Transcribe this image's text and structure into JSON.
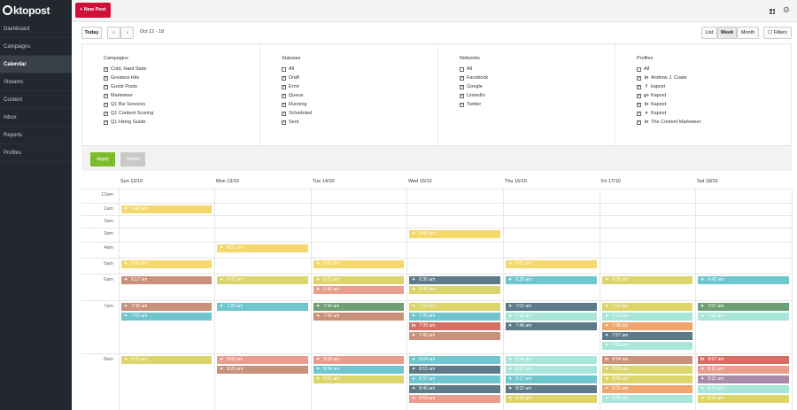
{
  "brand": {
    "logo_text": "ktopost"
  },
  "sidebar": {
    "items": [
      {
        "label": "Dashboard",
        "active": false
      },
      {
        "label": "Campaigns",
        "active": false
      },
      {
        "label": "Calendar",
        "active": true
      },
      {
        "label": "Streams",
        "active": false
      },
      {
        "label": "Content",
        "active": false
      },
      {
        "label": "Inbox",
        "active": false
      },
      {
        "label": "Reports",
        "active": false
      },
      {
        "label": "Profiles",
        "active": false
      }
    ]
  },
  "topbar": {
    "new_post_label": "+ New Post",
    "new_post_color": "#d0103a"
  },
  "toolbar": {
    "today_label": "Today",
    "prev_label": "‹",
    "next_label": "›",
    "date_range": "Oct 12 - 18",
    "list_label": "List",
    "week_label": "Week",
    "month_label": "Month",
    "filters_label": "☐ Filters"
  },
  "filters": {
    "campaigns": {
      "title": "Campaigns",
      "items": [
        {
          "label": "Cold, Hard Stats",
          "checked": true
        },
        {
          "label": "Greatest Hits",
          "checked": true
        },
        {
          "label": "Guest Posts",
          "checked": true
        },
        {
          "label": "Marketeer",
          "checked": true
        },
        {
          "label": "Q1 Biz Services",
          "checked": true
        },
        {
          "label": "Q1 Content Scoring",
          "checked": true
        },
        {
          "label": "Q1 Hiring Guide",
          "checked": true
        }
      ]
    },
    "statuses": {
      "title": "Statuses",
      "items": [
        {
          "label": "All",
          "checked": false
        },
        {
          "label": "Draft",
          "checked": true
        },
        {
          "label": "Error",
          "checked": true
        },
        {
          "label": "Queue",
          "checked": true
        },
        {
          "label": "Running",
          "checked": true
        },
        {
          "label": "Scheduled",
          "checked": true
        },
        {
          "label": "Sent",
          "checked": true
        }
      ]
    },
    "networks": {
      "title": "Networks",
      "items": [
        {
          "label": "All",
          "checked": false
        },
        {
          "label": "Facebook",
          "checked": true
        },
        {
          "label": "Google",
          "checked": true
        },
        {
          "label": "LinkedIn",
          "checked": true
        },
        {
          "label": "Twitter",
          "checked": true
        }
      ]
    },
    "profiles": {
      "title": "Profiles",
      "items": [
        {
          "label": "All",
          "checked": false,
          "icon": ""
        },
        {
          "label": "Andrew J. Coate",
          "checked": true,
          "icon": "in"
        },
        {
          "label": "kapost",
          "checked": true,
          "icon": "f"
        },
        {
          "label": "Kapost",
          "checked": true,
          "icon": "g+"
        },
        {
          "label": "Kapost",
          "checked": true,
          "icon": "in"
        },
        {
          "label": "Kapost",
          "checked": true,
          "icon": "t"
        },
        {
          "label": "The Content Marketeer",
          "checked": true,
          "icon": "in"
        }
      ]
    },
    "apply_label": "Apply",
    "reset_label": "Reset"
  },
  "calendar": {
    "days": [
      "Sun 12/10",
      "Mon 13/10",
      "Tue 14/10",
      "Wed 15/10",
      "Thu 16/10",
      "Fri 17/10",
      "Sat 18/10"
    ],
    "hours": [
      "12am",
      "1am",
      "2am",
      "3am",
      "4am",
      "5am",
      "6am",
      "7am",
      "8am"
    ],
    "colors": {
      "yellow": "#f5d86a",
      "olive": "#dbd56b",
      "salmon": "#e99d8c",
      "brown": "#c9917a",
      "teal": "#6fc6cf",
      "slate": "#5c7a87",
      "mint": "#a8e6d9",
      "green": "#6f9f76",
      "red": "#d56e63",
      "purple": "#a98aa8",
      "orange": "#efa56c"
    },
    "events": [
      {
        "day": 0,
        "hour": 1,
        "slot": 0,
        "time": "1:46 am",
        "icon": "t",
        "color": "yellow"
      },
      {
        "day": 3,
        "hour": 3,
        "slot": 0,
        "time": "3:44 am",
        "icon": "t",
        "color": "yellow"
      },
      {
        "day": 1,
        "hour": 4,
        "slot": 0,
        "time": "4:51 am",
        "icon": "t",
        "color": "yellow"
      },
      {
        "day": 0,
        "hour": 5,
        "slot": 0,
        "time": "5:56 am",
        "icon": "t",
        "color": "yellow"
      },
      {
        "day": 2,
        "hour": 5,
        "slot": 0,
        "time": "5:56 am",
        "icon": "t",
        "color": "yellow"
      },
      {
        "day": 4,
        "hour": 5,
        "slot": 0,
        "time": "5:55 am",
        "icon": "t",
        "color": "yellow"
      },
      {
        "day": 0,
        "hour": 6,
        "slot": 0,
        "time": "6:17 am",
        "icon": "t",
        "color": "brown"
      },
      {
        "day": 1,
        "hour": 6,
        "slot": 0,
        "time": "6:07 am",
        "icon": "t",
        "color": "olive"
      },
      {
        "day": 2,
        "hour": 6,
        "slot": 0,
        "time": "6:23 am",
        "icon": "t",
        "color": "olive"
      },
      {
        "day": 2,
        "hour": 6,
        "slot": 1,
        "time": "6:40 am",
        "icon": "t",
        "color": "salmon"
      },
      {
        "day": 3,
        "hour": 6,
        "slot": 0,
        "time": "6:30 am",
        "icon": "t",
        "color": "slate"
      },
      {
        "day": 3,
        "hour": 6,
        "slot": 1,
        "time": "6:45 am",
        "icon": "t",
        "color": "olive"
      },
      {
        "day": 4,
        "hour": 6,
        "slot": 0,
        "time": "6:20 am",
        "icon": "t",
        "color": "teal"
      },
      {
        "day": 5,
        "hour": 6,
        "slot": 0,
        "time": "6:35 am",
        "icon": "t",
        "color": "olive"
      },
      {
        "day": 6,
        "hour": 6,
        "slot": 0,
        "time": "6:42 am",
        "icon": "t",
        "color": "teal"
      },
      {
        "day": 0,
        "hour": 7,
        "slot": 0,
        "time": "7:38 am",
        "icon": "t",
        "color": "brown"
      },
      {
        "day": 0,
        "hour": 7,
        "slot": 1,
        "time": "7:51 am",
        "icon": "t",
        "color": "teal"
      },
      {
        "day": 1,
        "hour": 7,
        "slot": 0,
        "time": "7:29 am",
        "icon": "t",
        "color": "teal"
      },
      {
        "day": 2,
        "hour": 7,
        "slot": 0,
        "time": "7:34 am",
        "icon": "t",
        "color": "green"
      },
      {
        "day": 2,
        "hour": 7,
        "slot": 1,
        "time": "7:43 am",
        "icon": "t",
        "color": "brown"
      },
      {
        "day": 3,
        "hour": 7,
        "slot": 0,
        "time": "7:19 am",
        "icon": "t",
        "color": "olive"
      },
      {
        "day": 3,
        "hour": 7,
        "slot": 1,
        "time": "7:26 am",
        "icon": "t",
        "color": "teal"
      },
      {
        "day": 3,
        "hour": 7,
        "slot": 2,
        "time": "7:35 am",
        "icon": "in",
        "color": "red"
      },
      {
        "day": 3,
        "hour": 7,
        "slot": 3,
        "time": "7:42 am",
        "icon": "t",
        "color": "brown"
      },
      {
        "day": 4,
        "hour": 7,
        "slot": 0,
        "time": "7:01 am",
        "icon": "t",
        "color": "slate"
      },
      {
        "day": 4,
        "hour": 7,
        "slot": 1,
        "time": "7:18 am",
        "icon": "t",
        "color": "mint"
      },
      {
        "day": 4,
        "hour": 7,
        "slot": 2,
        "time": "7:48 am",
        "icon": "t",
        "color": "slate"
      },
      {
        "day": 5,
        "hour": 7,
        "slot": 0,
        "time": "7:02 am",
        "icon": "t",
        "color": "olive"
      },
      {
        "day": 5,
        "hour": 7,
        "slot": 1,
        "time": "7:19 am",
        "icon": "t",
        "color": "mint"
      },
      {
        "day": 5,
        "hour": 7,
        "slot": 2,
        "time": "7:38 am",
        "icon": "t",
        "color": "orange"
      },
      {
        "day": 5,
        "hour": 7,
        "slot": 3,
        "time": "7:57 am",
        "icon": "t",
        "color": "slate"
      },
      {
        "day": 5,
        "hour": 7,
        "slot": 4,
        "time": "7:59 am",
        "icon": "t",
        "color": "mint"
      },
      {
        "day": 6,
        "hour": 7,
        "slot": 0,
        "time": "7:07 am",
        "icon": "t",
        "color": "green"
      },
      {
        "day": 6,
        "hour": 7,
        "slot": 1,
        "time": "7:36 am",
        "icon": "t",
        "color": "mint"
      },
      {
        "day": 0,
        "hour": 8,
        "slot": 0,
        "time": "8:03 am",
        "icon": "t",
        "color": "olive"
      },
      {
        "day": 1,
        "hour": 8,
        "slot": 0,
        "time": "8:09 am",
        "icon": "t",
        "color": "salmon"
      },
      {
        "day": 1,
        "hour": 8,
        "slot": 1,
        "time": "8:29 am",
        "icon": "t",
        "color": "brown"
      },
      {
        "day": 2,
        "hour": 8,
        "slot": 0,
        "time": "8:29 am",
        "icon": "t",
        "color": "salmon"
      },
      {
        "day": 2,
        "hour": 8,
        "slot": 1,
        "time": "8:34 am",
        "icon": "t",
        "color": "teal"
      },
      {
        "day": 2,
        "hour": 8,
        "slot": 2,
        "time": "8:51 am",
        "icon": "t",
        "color": "olive"
      },
      {
        "day": 3,
        "hour": 8,
        "slot": 0,
        "time": "8:04 am",
        "icon": "t",
        "color": "teal"
      },
      {
        "day": 3,
        "hour": 8,
        "slot": 1,
        "time": "8:15 am",
        "icon": "t",
        "color": "slate"
      },
      {
        "day": 3,
        "hour": 8,
        "slot": 2,
        "time": "8:37 am",
        "icon": "t",
        "color": "teal"
      },
      {
        "day": 3,
        "hour": 8,
        "slot": 3,
        "time": "8:40 am",
        "icon": "t",
        "color": "slate"
      },
      {
        "day": 3,
        "hour": 8,
        "slot": 4,
        "time": "8:53 am",
        "icon": "t",
        "color": "salmon"
      },
      {
        "day": 4,
        "hour": 8,
        "slot": 0,
        "time": "8:04 am",
        "icon": "t",
        "color": "mint"
      },
      {
        "day": 4,
        "hour": 8,
        "slot": 1,
        "time": "8:10 am",
        "icon": "t",
        "color": "mint"
      },
      {
        "day": 4,
        "hour": 8,
        "slot": 2,
        "time": "8:17 am",
        "icon": "t",
        "color": "teal"
      },
      {
        "day": 4,
        "hour": 8,
        "slot": 3,
        "time": "8:22 am",
        "icon": "t",
        "color": "slate"
      },
      {
        "day": 4,
        "hour": 8,
        "slot": 4,
        "time": "8:43 am",
        "icon": "t",
        "color": "olive"
      },
      {
        "day": 5,
        "hour": 8,
        "slot": 0,
        "time": "8:04 am",
        "icon": "in",
        "color": "brown"
      },
      {
        "day": 5,
        "hour": 8,
        "slot": 1,
        "time": "8:09 am",
        "icon": "t",
        "color": "olive"
      },
      {
        "day": 5,
        "hour": 8,
        "slot": 2,
        "time": "8:20 am",
        "icon": "t",
        "color": "olive"
      },
      {
        "day": 5,
        "hour": 8,
        "slot": 3,
        "time": "8:25 am",
        "icon": "t",
        "color": "orange"
      },
      {
        "day": 5,
        "hour": 8,
        "slot": 4,
        "time": "8:45 am",
        "icon": "t",
        "color": "mint"
      },
      {
        "day": 6,
        "hour": 8,
        "slot": 0,
        "time": "8:07 am",
        "icon": "in",
        "color": "red"
      },
      {
        "day": 6,
        "hour": 8,
        "slot": 1,
        "time": "8:12 am",
        "icon": "t",
        "color": "salmon"
      },
      {
        "day": 6,
        "hour": 8,
        "slot": 2,
        "time": "8:21 am",
        "icon": "t",
        "color": "purple"
      },
      {
        "day": 6,
        "hour": 8,
        "slot": 3,
        "time": "8:24 am",
        "icon": "t",
        "color": "mint"
      },
      {
        "day": 6,
        "hour": 8,
        "slot": 4,
        "time": "8:39 am",
        "icon": "t",
        "color": "olive"
      }
    ]
  }
}
